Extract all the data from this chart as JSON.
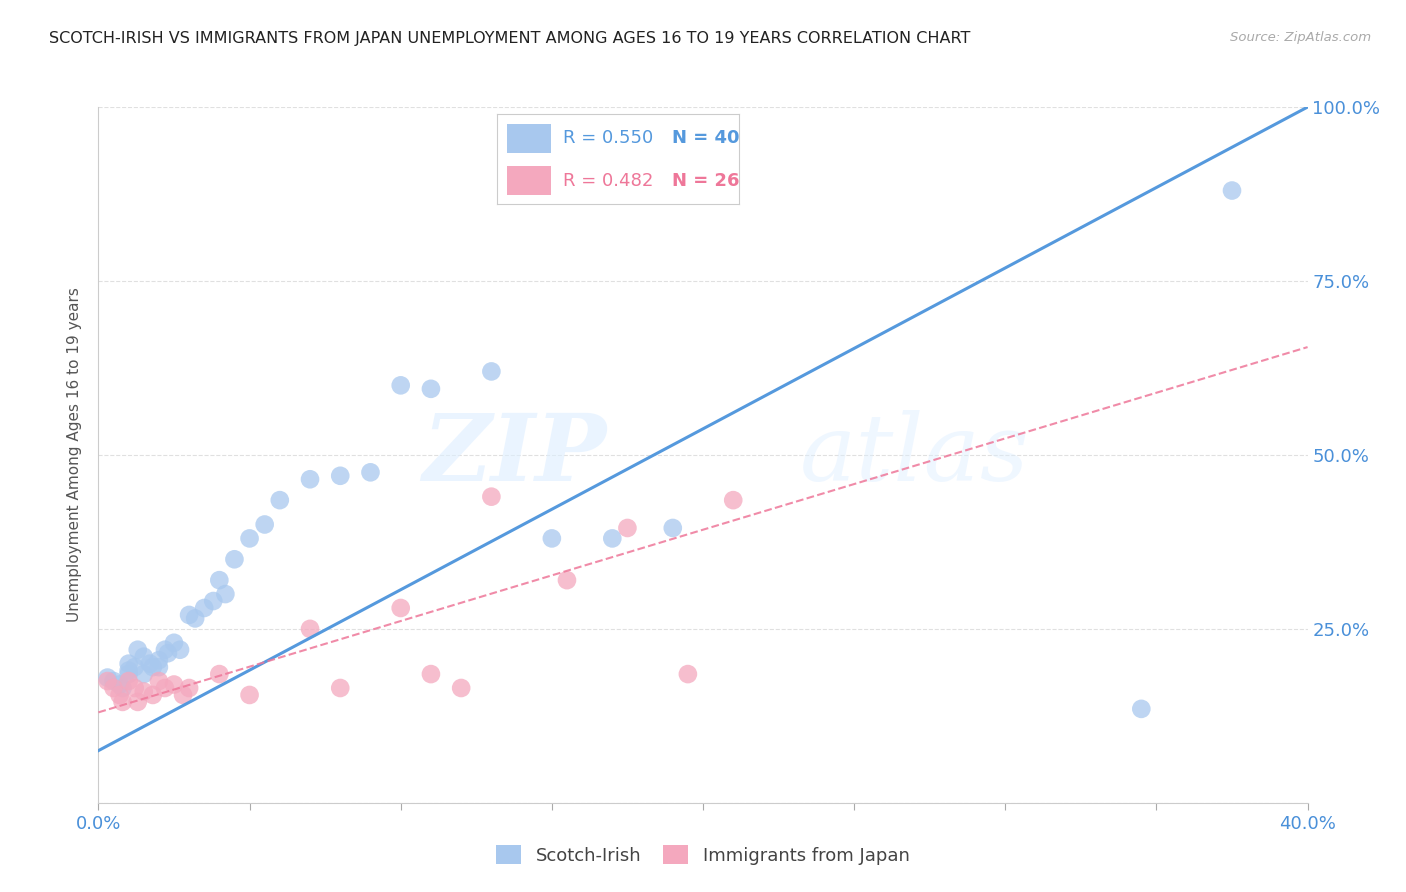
{
  "title": "SCOTCH-IRISH VS IMMIGRANTS FROM JAPAN UNEMPLOYMENT AMONG AGES 16 TO 19 YEARS CORRELATION CHART",
  "source": "Source: ZipAtlas.com",
  "ylabel": "Unemployment Among Ages 16 to 19 years",
  "xlim": [
    0.0,
    0.4
  ],
  "ylim": [
    0.0,
    1.0
  ],
  "xticks": [
    0.0,
    0.05,
    0.1,
    0.15,
    0.2,
    0.25,
    0.3,
    0.35,
    0.4
  ],
  "xticklabels": [
    "0.0%",
    "",
    "",
    "",
    "",
    "",
    "",
    "",
    "40.0%"
  ],
  "ytick_positions": [
    0.0,
    0.25,
    0.5,
    0.75,
    1.0
  ],
  "yticklabels_right": [
    "",
    "25.0%",
    "50.0%",
    "75.0%",
    "100.0%"
  ],
  "watermark_zip": "ZIP",
  "watermark_atlas": "atlas",
  "blue_color": "#a8c8ee",
  "pink_color": "#f4a8be",
  "blue_line_color": "#5599dd",
  "pink_line_color": "#ee7799",
  "legend_R1": "R = 0.550",
  "legend_N1": "N = 40",
  "legend_R2": "R = 0.482",
  "legend_N2": "N = 26",
  "scotch_irish_x": [
    0.003,
    0.005,
    0.007,
    0.008,
    0.01,
    0.01,
    0.01,
    0.012,
    0.013,
    0.015,
    0.015,
    0.017,
    0.018,
    0.02,
    0.02,
    0.022,
    0.023,
    0.025,
    0.027,
    0.03,
    0.032,
    0.035,
    0.038,
    0.04,
    0.042,
    0.045,
    0.05,
    0.055,
    0.06,
    0.07,
    0.08,
    0.09,
    0.1,
    0.11,
    0.13,
    0.15,
    0.17,
    0.19,
    0.345,
    0.375
  ],
  "scotch_irish_y": [
    0.18,
    0.175,
    0.17,
    0.165,
    0.2,
    0.19,
    0.185,
    0.195,
    0.22,
    0.21,
    0.185,
    0.2,
    0.195,
    0.205,
    0.195,
    0.22,
    0.215,
    0.23,
    0.22,
    0.27,
    0.265,
    0.28,
    0.29,
    0.32,
    0.3,
    0.35,
    0.38,
    0.4,
    0.435,
    0.465,
    0.47,
    0.475,
    0.6,
    0.595,
    0.62,
    0.38,
    0.38,
    0.395,
    0.135,
    0.88
  ],
  "japan_x": [
    0.003,
    0.005,
    0.007,
    0.008,
    0.01,
    0.012,
    0.013,
    0.015,
    0.018,
    0.02,
    0.022,
    0.025,
    0.028,
    0.03,
    0.04,
    0.05,
    0.07,
    0.08,
    0.1,
    0.11,
    0.12,
    0.13,
    0.155,
    0.175,
    0.195,
    0.21
  ],
  "japan_y": [
    0.175,
    0.165,
    0.155,
    0.145,
    0.175,
    0.165,
    0.145,
    0.16,
    0.155,
    0.175,
    0.165,
    0.17,
    0.155,
    0.165,
    0.185,
    0.155,
    0.25,
    0.165,
    0.28,
    0.185,
    0.165,
    0.44,
    0.32,
    0.395,
    0.185,
    0.435
  ],
  "blue_line_x": [
    0.0,
    0.4
  ],
  "blue_line_y": [
    0.075,
    1.0
  ],
  "pink_line_x": [
    0.0,
    0.4
  ],
  "pink_line_y": [
    0.13,
    0.655
  ],
  "grid_color": "#dddddd",
  "title_color": "#222222",
  "axis_label_color": "#555555",
  "tick_label_color": "#4a90d9",
  "background_color": "#ffffff"
}
